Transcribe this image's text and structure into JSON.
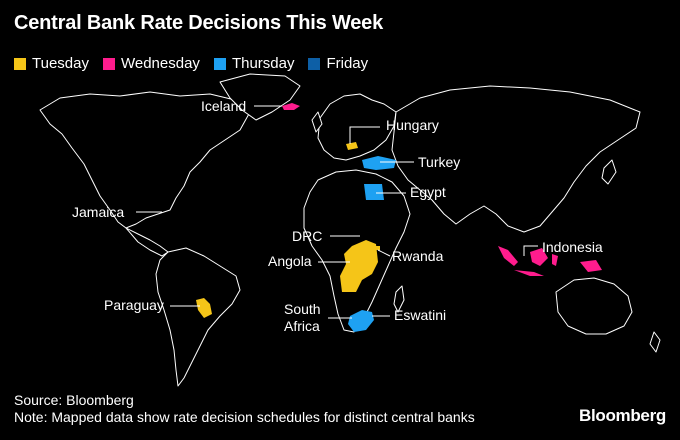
{
  "title": "Central Bank Rate Decisions This Week",
  "colors": {
    "tuesday": "#f5c518",
    "wednesday": "#ff1c8d",
    "thursday": "#1ea1f2",
    "friday": "#0d5fa6",
    "land": "#000000",
    "outline": "#ffffff"
  },
  "legend": [
    {
      "label": "Tuesday",
      "color": "#f5c518"
    },
    {
      "label": "Wednesday",
      "color": "#ff1c8d"
    },
    {
      "label": "Thursday",
      "color": "#1ea1f2"
    },
    {
      "label": "Friday",
      "color": "#0d5fa6"
    }
  ],
  "countries": {
    "iceland": "Iceland",
    "hungary": "Hungary",
    "turkey": "Turkey",
    "egypt": "Egypt",
    "jamaica": "Jamaica",
    "drc": "DRC",
    "angola": "Angola",
    "rwanda": "Rwanda",
    "indonesia": "Indonesia",
    "paraguay": "Paraguay",
    "south_africa_line1": "South",
    "south_africa_line2": "Africa",
    "eswatini": "Eswatini"
  },
  "footer": {
    "source": "Source: Bloomberg",
    "note": "Note: Mapped data show rate decision schedules for distinct central banks"
  },
  "brand": "Bloomberg"
}
